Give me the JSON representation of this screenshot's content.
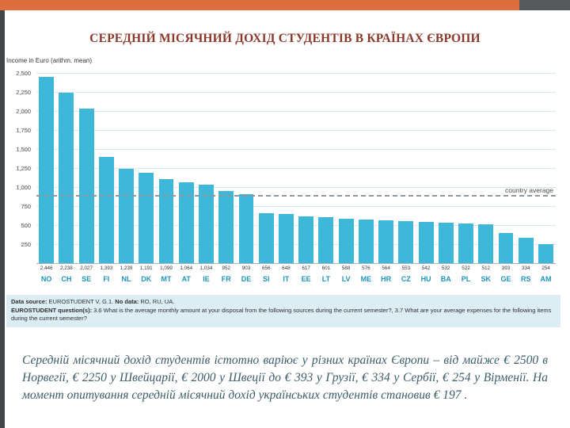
{
  "slide": {
    "title": "СЕРЕДНІЙ МІСЯЧНИЙ ДОХІД СТУДЕНТІВ В КРАЇНАХ ЄВРОПИ",
    "accent_color": "#DD6E3D",
    "bar_color": "#3EB7D8",
    "country_label_color": "#1E95BC"
  },
  "chart_data": {
    "type": "bar",
    "title": "Income in Euro (arithm. mean)",
    "categories": [
      "NO",
      "CH",
      "SE",
      "FI",
      "NL",
      "DK",
      "MT",
      "AT",
      "IE",
      "FR",
      "DE",
      "SI",
      "IT",
      "EE",
      "LT",
      "LV",
      "ME",
      "HR",
      "CZ",
      "HU",
      "BA",
      "PL",
      "SK",
      "GE",
      "RS",
      "AM"
    ],
    "values": [
      2446,
      2238,
      2027,
      1393,
      1239,
      1191,
      1099,
      1064,
      1034,
      952,
      903,
      656,
      648,
      617,
      601,
      588,
      576,
      564,
      553,
      542,
      532,
      522,
      512,
      393,
      334,
      254
    ],
    "value_labels": [
      "2,446",
      "2,238",
      "2,027",
      "1,393",
      "1,239",
      "1,191",
      "1,099",
      "1,064",
      "1,034",
      "952",
      "903",
      "656",
      "648",
      "617",
      "601",
      "588",
      "576",
      "564",
      "553",
      "542",
      "532",
      "522",
      "512",
      "393",
      "334",
      "254"
    ],
    "ylim": [
      0,
      2500
    ],
    "yticks": [
      "2,500",
      "2,250",
      "2,000",
      "1,750",
      "1,500",
      "1,250",
      "1,000",
      "750",
      "500",
      "250"
    ],
    "average_line": {
      "label": "country average",
      "value": 870
    },
    "grid": true,
    "legend": "none",
    "xlabel": "",
    "ylabel": "Income in Euro (arithm. mean)"
  },
  "source": {
    "line1_prefix": "Data source:",
    "line1_body": " EUROSTUDENT V, G.1.  ",
    "line1_bold": "No data:",
    "line1_suffix": " RO, RU, UA.",
    "line2_prefix": "EUROSTUDENT question(s):",
    "line2_body": " 3.6 What is the average monthly amount at your disposal from the following sources during the current semester?, 3.7 What are your average expenses for the following items during the current semester?"
  },
  "paragraph": "Середній місячний дохід студентів істотно варіює у різних країнах Європи – від майже € 2500 в Норвегії, € 2250 у Швейцарії, € 2000 у Швеції до € 393 у Грузії, € 334 у Сербії, € 254 у Вірменії. На момент опитування середній місячний дохід українських студентів становив € 197 ."
}
